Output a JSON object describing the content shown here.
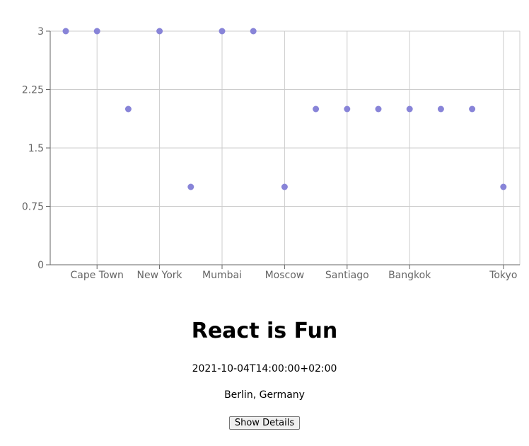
{
  "chart_data": {
    "type": "scatter",
    "categories": [
      "",
      "Cape Town",
      "",
      "New York",
      "",
      "Mumbai",
      "",
      "Moscow",
      "",
      "Santiago",
      "",
      "Bangkok",
      "",
      "",
      "Tokyo"
    ],
    "x_tick_labels": [
      "Cape Town",
      "New York",
      "Mumbai",
      "Moscow",
      "Santiago",
      "Bangkok",
      "Tokyo"
    ],
    "points": [
      {
        "x": 0,
        "y": 3
      },
      {
        "x": 1,
        "y": 3
      },
      {
        "x": 2,
        "y": 2
      },
      {
        "x": 3,
        "y": 3
      },
      {
        "x": 4,
        "y": 1
      },
      {
        "x": 5,
        "y": 3
      },
      {
        "x": 6,
        "y": 3
      },
      {
        "x": 7,
        "y": 1
      },
      {
        "x": 8,
        "y": 2
      },
      {
        "x": 9,
        "y": 2
      },
      {
        "x": 10,
        "y": 2
      },
      {
        "x": 11,
        "y": 2
      },
      {
        "x": 12,
        "y": 2
      },
      {
        "x": 13,
        "y": 2
      },
      {
        "x": 14,
        "y": 1
      }
    ],
    "ylim": [
      0,
      3
    ],
    "y_ticks": [
      "0",
      "0.75",
      "1.5",
      "2.25",
      "3"
    ],
    "grid": true,
    "point_color": "#8884d8",
    "grid_color": "#cccccc",
    "axis_color": "#666666"
  },
  "event": {
    "title": "React is Fun",
    "date": "2021-10-04T14:00:00+02:00",
    "location": "Berlin, Germany",
    "details_button_label": "Show Details"
  }
}
